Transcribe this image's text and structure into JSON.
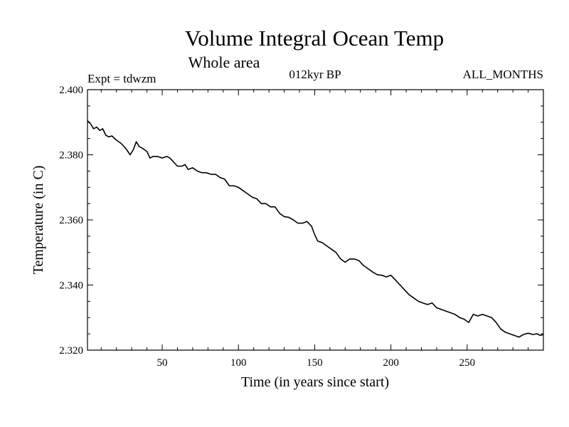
{
  "chart_data": {
    "type": "line",
    "title": "Volume Integral Ocean Temp",
    "subtitle": "Whole area",
    "annotations": {
      "left": "Expt = tdwzm",
      "center": "012kyr BP",
      "right": "ALL_MONTHS"
    },
    "xlabel": "Time (in years since start)",
    "ylabel": "Temperature (in C)",
    "xlim": [
      1,
      300
    ],
    "ylim": [
      2.32,
      2.4
    ],
    "xticks": [
      50,
      100,
      150,
      200,
      250
    ],
    "xtick_labels": [
      "50",
      "100",
      "150",
      "200",
      "250"
    ],
    "yticks": [
      2.32,
      2.34,
      2.36,
      2.38,
      2.4
    ],
    "ytick_labels": [
      "2.320",
      "2.340",
      "2.360",
      "2.380",
      "2.400"
    ],
    "grid": false,
    "legend": "none",
    "series": [
      {
        "color": "#000000",
        "x": [
          1,
          3,
          5,
          7,
          9,
          11,
          13,
          15,
          17,
          20,
          23,
          26,
          29,
          31,
          33,
          35,
          37,
          40,
          42,
          44,
          47,
          50,
          53,
          55,
          57,
          60,
          63,
          65,
          67,
          70,
          73,
          76,
          79,
          82,
          85,
          88,
          91,
          94,
          97,
          100,
          103,
          106,
          109,
          112,
          115,
          118,
          121,
          124,
          127,
          130,
          133,
          136,
          139,
          142,
          145,
          148,
          150,
          152,
          155,
          158,
          161,
          164,
          167,
          170,
          173,
          176,
          179,
          182,
          185,
          188,
          191,
          194,
          197,
          200,
          203,
          206,
          209,
          212,
          215,
          218,
          221,
          224,
          227,
          230,
          233,
          236,
          239,
          242,
          245,
          248,
          251,
          254,
          257,
          260,
          263,
          266,
          269,
          272,
          275,
          278,
          281,
          284,
          287,
          290,
          293,
          296,
          298,
          300
        ],
        "y": [
          2.3905,
          2.3895,
          2.388,
          2.3885,
          2.3875,
          2.388,
          2.386,
          2.3855,
          2.3858,
          2.3845,
          2.3835,
          2.382,
          2.38,
          2.3815,
          2.384,
          2.3825,
          2.382,
          2.381,
          2.379,
          2.3795,
          2.3795,
          2.379,
          2.3795,
          2.379,
          2.378,
          2.3765,
          2.3765,
          2.377,
          2.3755,
          2.376,
          2.375,
          2.3745,
          2.3745,
          2.374,
          2.374,
          2.373,
          2.3725,
          2.3705,
          2.3705,
          2.37,
          2.369,
          2.368,
          2.367,
          2.3665,
          2.365,
          2.365,
          2.364,
          2.364,
          2.362,
          2.361,
          2.3608,
          2.36,
          2.359,
          2.359,
          2.3595,
          2.358,
          2.3555,
          2.3535,
          2.353,
          2.352,
          2.351,
          2.35,
          2.348,
          2.347,
          2.348,
          2.348,
          2.3475,
          2.346,
          2.345,
          2.344,
          2.3432,
          2.343,
          2.3425,
          2.343,
          2.3415,
          2.34,
          2.3385,
          2.337,
          2.336,
          2.335,
          2.3345,
          2.334,
          2.3345,
          2.333,
          2.3325,
          2.332,
          2.3315,
          2.331,
          2.33,
          2.3295,
          2.3285,
          2.331,
          2.3305,
          2.331,
          2.3305,
          2.33,
          2.3285,
          2.3265,
          2.3255,
          2.325,
          2.3245,
          2.324,
          2.3248,
          2.3252,
          2.3248,
          2.325,
          2.3245,
          2.3248
        ]
      }
    ]
  }
}
